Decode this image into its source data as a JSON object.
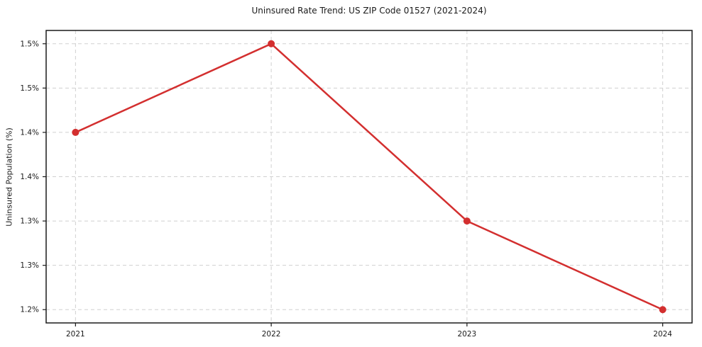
{
  "chart_data": {
    "type": "line",
    "title": "Uninsured Rate Trend: US ZIP Code 01527 (2021-2024)",
    "xlabel": "",
    "ylabel": "Uninsured Population (%)",
    "x": [
      2021,
      2022,
      2023,
      2024
    ],
    "y": [
      1.4,
      1.5,
      1.3,
      1.2
    ],
    "xlim": [
      2020.85,
      2024.15
    ],
    "ylim": [
      1.185,
      1.515
    ],
    "xticks": {
      "values": [
        2021,
        2022,
        2023,
        2024
      ],
      "labels": [
        "2021",
        "2022",
        "2023",
        "2024"
      ]
    },
    "yticks": {
      "values": [
        1.5,
        1.45,
        1.4,
        1.35,
        1.3,
        1.25,
        1.2
      ],
      "labels": [
        "1.5%",
        "1.5%",
        "1.4%",
        "1.4%",
        "1.3%",
        "1.3%",
        "1.2%"
      ]
    },
    "grid": true,
    "grid_style": "dashed",
    "legend": false,
    "marker": "circle",
    "colors": {
      "line": "#d32f2f",
      "marker": "#d32f2f",
      "grid": "#d0d0d0",
      "axis": "#1a1a1a",
      "text": "#1a1a1a",
      "background": "#ffffff"
    }
  }
}
